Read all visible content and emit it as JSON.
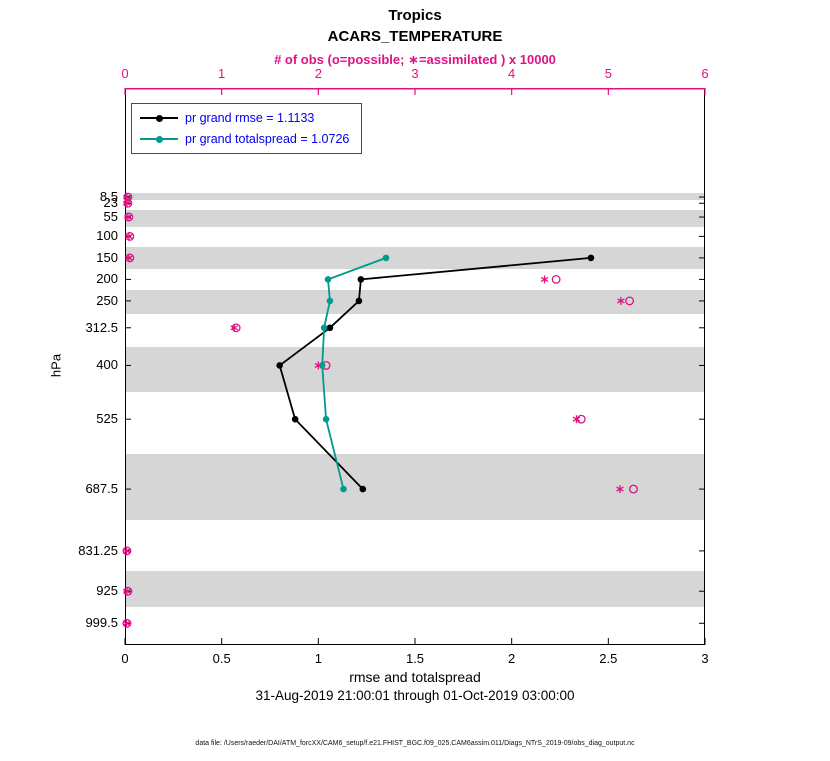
{
  "title": "Tropics",
  "subtitle": "ACARS_TEMPERATURE",
  "top_axis_label": "# of obs (o=possible; ∗=assimilated ) x 10000",
  "xlabel": "rmse and totalspread",
  "ylabel": "hPa",
  "date_range": "31-Aug-2019 21:00:01 through 01-Oct-2019 03:00:00",
  "footer": "data file: /Users/raeder/DAI/ATM_forcXX/CAM6_setup/f.e21.FHIST_BGC.f09_025.CAM6assim.011/Diags_NTrS_2019-09/obs_diag_output.nc",
  "legend": {
    "text_color": "#0000ee",
    "entries": [
      {
        "label": "pr grand rmse = 1.1133",
        "color": "#000000"
      },
      {
        "label": "pr grand totalspread = 1.0726",
        "color": "#009a8e"
      }
    ]
  },
  "colors": {
    "obs_magenta": "#de1284",
    "gray_band": "#d6d6d6",
    "axis_black": "#000000"
  },
  "chart_data": {
    "type": "line",
    "orientation": "vertical-profile",
    "title": "Tropics ACARS_TEMPERATURE",
    "levels_hpa": [
      8.5,
      23,
      55,
      100,
      150,
      200,
      250,
      312.5,
      400,
      525,
      687.5,
      831.25,
      925,
      999.5
    ],
    "gray_band_levels": [
      8.5,
      55,
      150,
      250,
      400,
      687.5,
      925
    ],
    "y_axis": {
      "label": "hPa",
      "range": [
        -245,
        1050
      ],
      "direction": "increasing-downward"
    },
    "x_bottom": {
      "label": "rmse and totalspread",
      "range": [
        0,
        3
      ],
      "ticks": [
        0,
        0.5,
        1,
        1.5,
        2,
        2.5,
        3
      ],
      "color": "#000000"
    },
    "x_top": {
      "label": "# of obs (o=possible; ∗=assimilated ) x 10000",
      "range": [
        0,
        6
      ],
      "ticks": [
        0,
        1,
        2,
        3,
        4,
        5,
        6
      ],
      "color": "#de1284"
    },
    "series": [
      {
        "name": "pr grand rmse",
        "grand_value": 1.1133,
        "color": "#000000",
        "x_axis": "bottom",
        "points": [
          {
            "level": 150,
            "value": 2.41
          },
          {
            "level": 200,
            "value": 1.22
          },
          {
            "level": 250,
            "value": 1.21
          },
          {
            "level": 312.5,
            "value": 1.06
          },
          {
            "level": 400,
            "value": 0.8
          },
          {
            "level": 525,
            "value": 0.88
          },
          {
            "level": 687.5,
            "value": 1.23
          }
        ]
      },
      {
        "name": "pr grand totalspread",
        "grand_value": 1.0726,
        "color": "#009a8e",
        "x_axis": "bottom",
        "points": [
          {
            "level": 150,
            "value": 1.35
          },
          {
            "level": 200,
            "value": 1.05
          },
          {
            "level": 250,
            "value": 1.06
          },
          {
            "level": 312.5,
            "value": 1.03
          },
          {
            "level": 400,
            "value": 1.02
          },
          {
            "level": 525,
            "value": 1.04
          },
          {
            "level": 687.5,
            "value": 1.13
          }
        ]
      }
    ],
    "obs_counts_x10000": {
      "axis": "top",
      "possible_marker": "o",
      "assimilated_marker": "∗",
      "color": "#de1284",
      "points": [
        {
          "level": 8.5,
          "possible": 0.03,
          "assimilated": 0.02
        },
        {
          "level": 23,
          "possible": 0.03,
          "assimilated": 0.02
        },
        {
          "level": 55,
          "possible": 0.04,
          "assimilated": 0.03
        },
        {
          "level": 100,
          "possible": 0.05,
          "assimilated": 0.04
        },
        {
          "level": 150,
          "possible": 0.05,
          "assimilated": 0.04
        },
        {
          "level": 200,
          "possible": 4.46,
          "assimilated": 4.34
        },
        {
          "level": 250,
          "possible": 5.22,
          "assimilated": 5.13
        },
        {
          "level": 312.5,
          "possible": 1.15,
          "assimilated": 1.13
        },
        {
          "level": 400,
          "possible": 2.08,
          "assimilated": 2.0
        },
        {
          "level": 525,
          "possible": 4.72,
          "assimilated": 4.67
        },
        {
          "level": 687.5,
          "possible": 5.26,
          "assimilated": 5.12
        },
        {
          "level": 831.25,
          "possible": 0.02,
          "assimilated": 0.015
        },
        {
          "level": 925,
          "possible": 0.03,
          "assimilated": 0.02
        },
        {
          "level": 999.5,
          "possible": 0.02,
          "assimilated": 0.015
        }
      ]
    }
  }
}
